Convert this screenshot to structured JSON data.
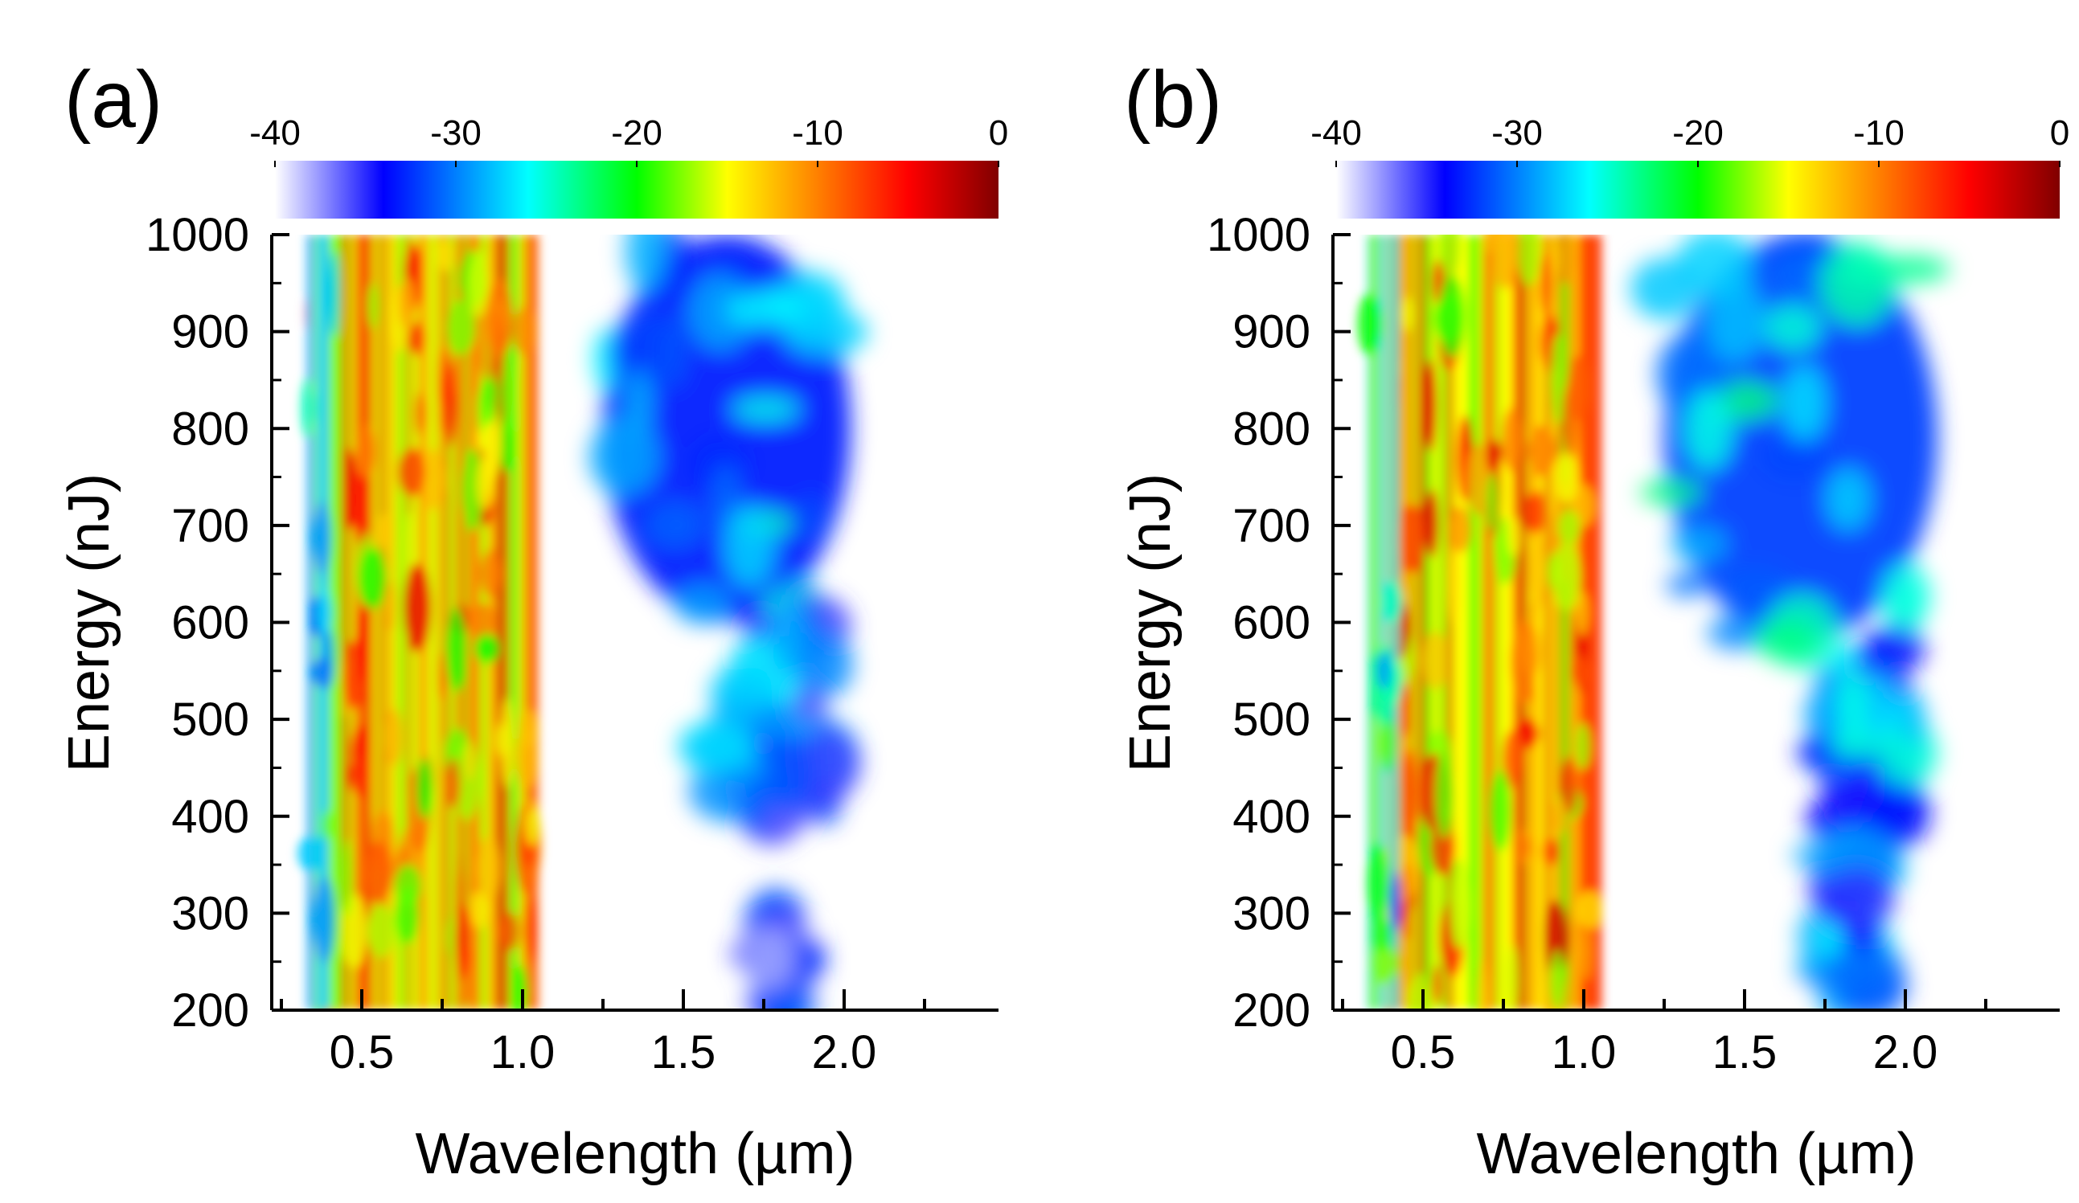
{
  "chart_data": [
    {
      "panel_label": "(a)",
      "type": "heatmap",
      "title": "",
      "xlabel": "Wavelength (µm)",
      "ylabel": "Energy (nJ)",
      "xlim": [
        0.22,
        2.48
      ],
      "ylim": [
        200,
        1000
      ],
      "x_ticks": [
        0.5,
        1.0,
        1.5,
        2.0
      ],
      "x_tick_labels": [
        "0.5",
        "1.0",
        "1.5",
        "2.0"
      ],
      "y_ticks": [
        200,
        300,
        400,
        500,
        600,
        700,
        800,
        900,
        1000
      ],
      "y_tick_labels": [
        "200",
        "300",
        "400",
        "500",
        "600",
        "700",
        "800",
        "900",
        "1000"
      ],
      "colorbar": {
        "range": [
          -40,
          0
        ],
        "ticks": [
          -40,
          -30,
          -20,
          -10,
          0
        ],
        "tick_labels": [
          "-40",
          "-30",
          "-20",
          "-10",
          "0"
        ],
        "colors": [
          "#ffffff",
          "#0000ff",
          "#00ffff",
          "#00ff00",
          "#ffff00",
          "#ff8000",
          "#ff0000",
          "#800000"
        ],
        "stops": [
          -40,
          -34,
          -26,
          -20,
          -15,
          -10,
          -5,
          0
        ]
      },
      "regions": [
        {
          "name": "visible-band",
          "wl_min": 0.36,
          "wl_max": 1.03,
          "e_min": 200,
          "e_max": 1000,
          "level_db": -12
        },
        {
          "name": "left-edge",
          "wl_min": 0.33,
          "wl_max": 0.42,
          "e_min": 200,
          "e_max": 1000,
          "level_db": -24
        },
        {
          "name": "ir-broadband",
          "wl_min": 1.25,
          "wl_max": 2.02,
          "e_min": 600,
          "e_max": 1000,
          "level_db": -30
        },
        {
          "name": "ir-tail",
          "wl_min": 1.6,
          "wl_max": 1.95,
          "e_min": 370,
          "e_max": 600,
          "level_db": -33
        },
        {
          "name": "ir-faint-spot",
          "wl_min": 1.76,
          "wl_max": 1.84,
          "e_min": 200,
          "e_max": 290,
          "level_db": -37
        }
      ]
    },
    {
      "panel_label": "(b)",
      "type": "heatmap",
      "title": "",
      "xlabel": "Wavelength (µm)",
      "ylabel": "Energy (nJ)",
      "xlim": [
        0.22,
        2.48
      ],
      "ylim": [
        200,
        1000
      ],
      "x_ticks": [
        0.5,
        1.0,
        1.5,
        2.0
      ],
      "x_tick_labels": [
        "0.5",
        "1.0",
        "1.5",
        "2.0"
      ],
      "y_ticks": [
        200,
        300,
        400,
        500,
        600,
        700,
        800,
        900,
        1000
      ],
      "y_tick_labels": [
        "200",
        "300",
        "400",
        "500",
        "600",
        "700",
        "800",
        "900",
        "1000"
      ],
      "colorbar": {
        "range": [
          -40,
          0
        ],
        "ticks": [
          -40,
          -30,
          -20,
          -10,
          0
        ],
        "tick_labels": [
          "-40",
          "-30",
          "-20",
          "-10",
          "0"
        ],
        "colors": [
          "#ffffff",
          "#0000ff",
          "#00ffff",
          "#00ff00",
          "#ffff00",
          "#ff8000",
          "#ff0000",
          "#800000"
        ],
        "stops": [
          -40,
          -34,
          -26,
          -20,
          -15,
          -10,
          -5,
          0
        ]
      },
      "regions": [
        {
          "name": "visible-band",
          "wl_min": 0.36,
          "wl_max": 1.03,
          "e_min": 200,
          "e_max": 1000,
          "level_db": -11
        },
        {
          "name": "left-edge",
          "wl_min": 0.33,
          "wl_max": 0.42,
          "e_min": 200,
          "e_max": 1000,
          "level_db": -24
        },
        {
          "name": "ir-broadband",
          "wl_min": 1.25,
          "wl_max": 2.1,
          "e_min": 580,
          "e_max": 1000,
          "level_db": -29
        },
        {
          "name": "ir-tail",
          "wl_min": 1.72,
          "wl_max": 2.05,
          "e_min": 370,
          "e_max": 580,
          "level_db": -32
        },
        {
          "name": "ir-lower-tail",
          "wl_min": 1.78,
          "wl_max": 1.9,
          "e_min": 200,
          "e_max": 370,
          "level_db": -33
        }
      ]
    }
  ]
}
